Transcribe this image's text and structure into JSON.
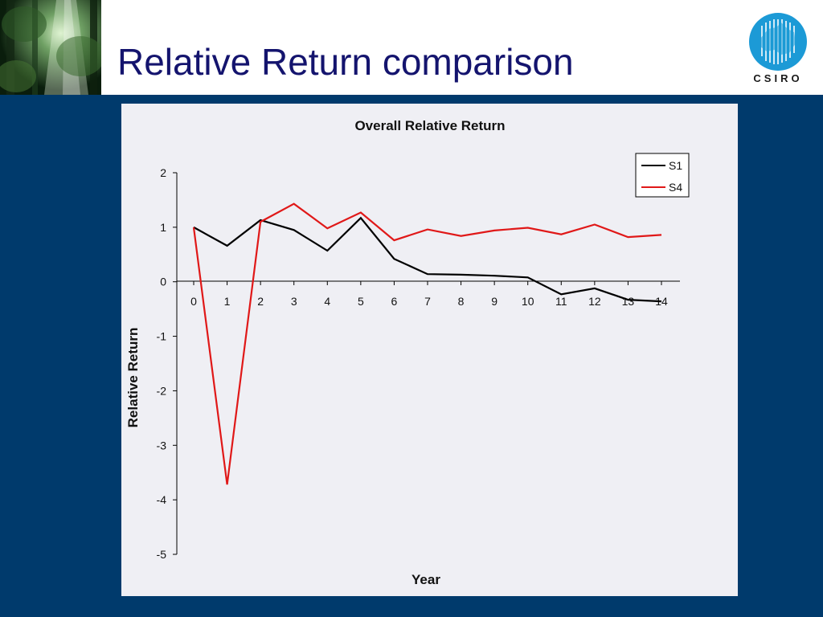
{
  "slide": {
    "title": "Relative Return comparison",
    "logo_text": "CSIRO"
  },
  "colors": {
    "header_bg": "#ffffff",
    "body_bg": "#003a6c",
    "title_color": "#14146e",
    "chart_bg": "#efeff4",
    "logo_circle": "#1c9ad6",
    "series_S1": "#000000",
    "series_S4": "#e01818"
  },
  "chart_data": {
    "type": "line",
    "title": "Overall Relative Return",
    "xlabel": "Year",
    "ylabel": "Relative Return",
    "x": [
      0,
      1,
      2,
      3,
      4,
      5,
      6,
      7,
      8,
      9,
      10,
      11,
      12,
      13,
      14
    ],
    "xlim": [
      0,
      14
    ],
    "ylim": [
      -5,
      2
    ],
    "yticks": [
      2,
      1,
      0,
      -1,
      -2,
      -3,
      -4,
      -5
    ],
    "grid": false,
    "legend_position": "top-right",
    "series": [
      {
        "name": "S1",
        "color": "#000000",
        "values": [
          1.0,
          0.66,
          1.13,
          0.95,
          0.57,
          1.17,
          0.42,
          0.14,
          0.13,
          0.11,
          0.08,
          -0.23,
          -0.12,
          -0.33,
          -0.36
        ]
      },
      {
        "name": "S4",
        "color": "#e01818",
        "values": [
          1.0,
          -3.72,
          1.1,
          1.43,
          0.98,
          1.27,
          0.76,
          0.96,
          0.84,
          0.94,
          0.99,
          0.87,
          1.05,
          0.82,
          0.86
        ]
      }
    ]
  }
}
